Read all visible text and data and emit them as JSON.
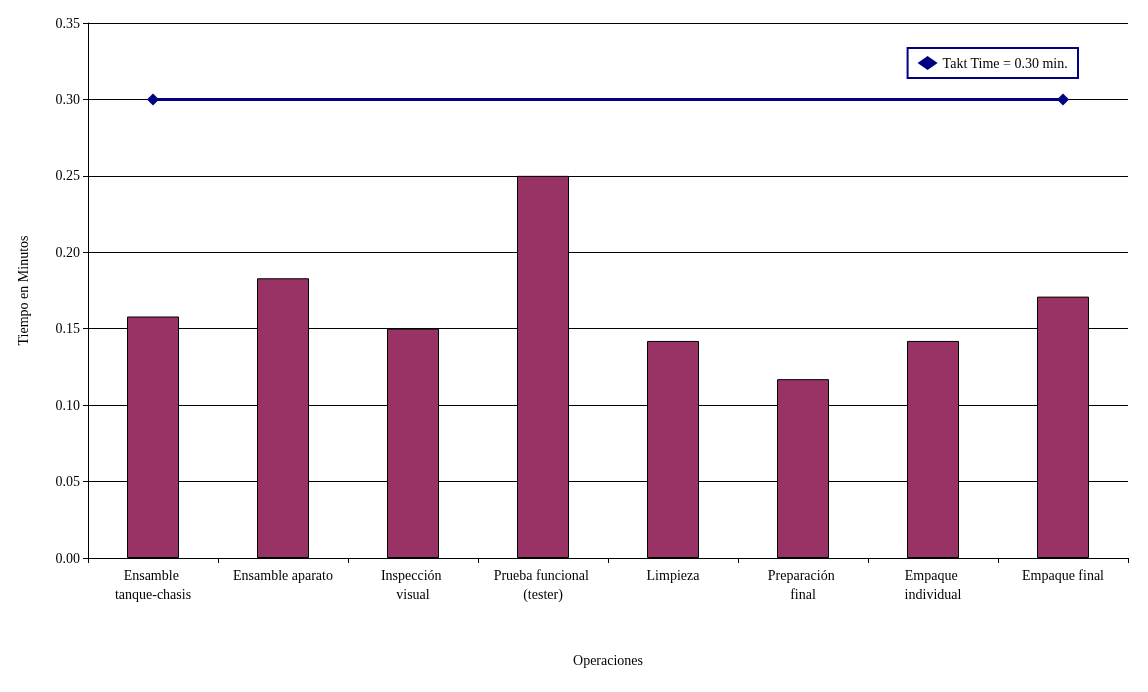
{
  "chart_data": {
    "type": "bar",
    "xlabel": "Operaciones",
    "ylabel": "Tiempo en Minutos",
    "categories": [
      "Ensamble tanque-chasis",
      "Ensamble aparato",
      "Inspección visual",
      "Prueba funcional (tester)",
      "Limpieza",
      "Preparación final",
      "Empaque individual",
      "Empaque final"
    ],
    "series": [
      {
        "color": "#993366",
        "values": [
          0.158,
          0.183,
          0.15,
          0.25,
          0.142,
          0.117,
          0.142,
          0.171
        ]
      },
      {
        "type": "line",
        "name": "Takt Time = 0.30 min.",
        "color": "#000080",
        "x": [
          "Ensamble tanque-chasis",
          "Empaque final"
        ],
        "values": [
          0.3,
          0.3
        ],
        "marker": "diamond"
      }
    ],
    "ylim": [
      0,
      0.35
    ],
    "yticks": [
      {
        "value": 0,
        "label": "0.00"
      },
      {
        "value": 0.05,
        "label": "0.05"
      },
      {
        "value": 0.1,
        "label": "0.10"
      },
      {
        "value": 0.15,
        "label": "0.15"
      },
      {
        "value": 0.2,
        "label": "0.20"
      },
      {
        "value": 0.25,
        "label": "0.25"
      },
      {
        "value": 0.3,
        "label": "0.30"
      },
      {
        "value": 0.35,
        "label": "0.35"
      }
    ],
    "grid": "y",
    "legend": "top right"
  }
}
